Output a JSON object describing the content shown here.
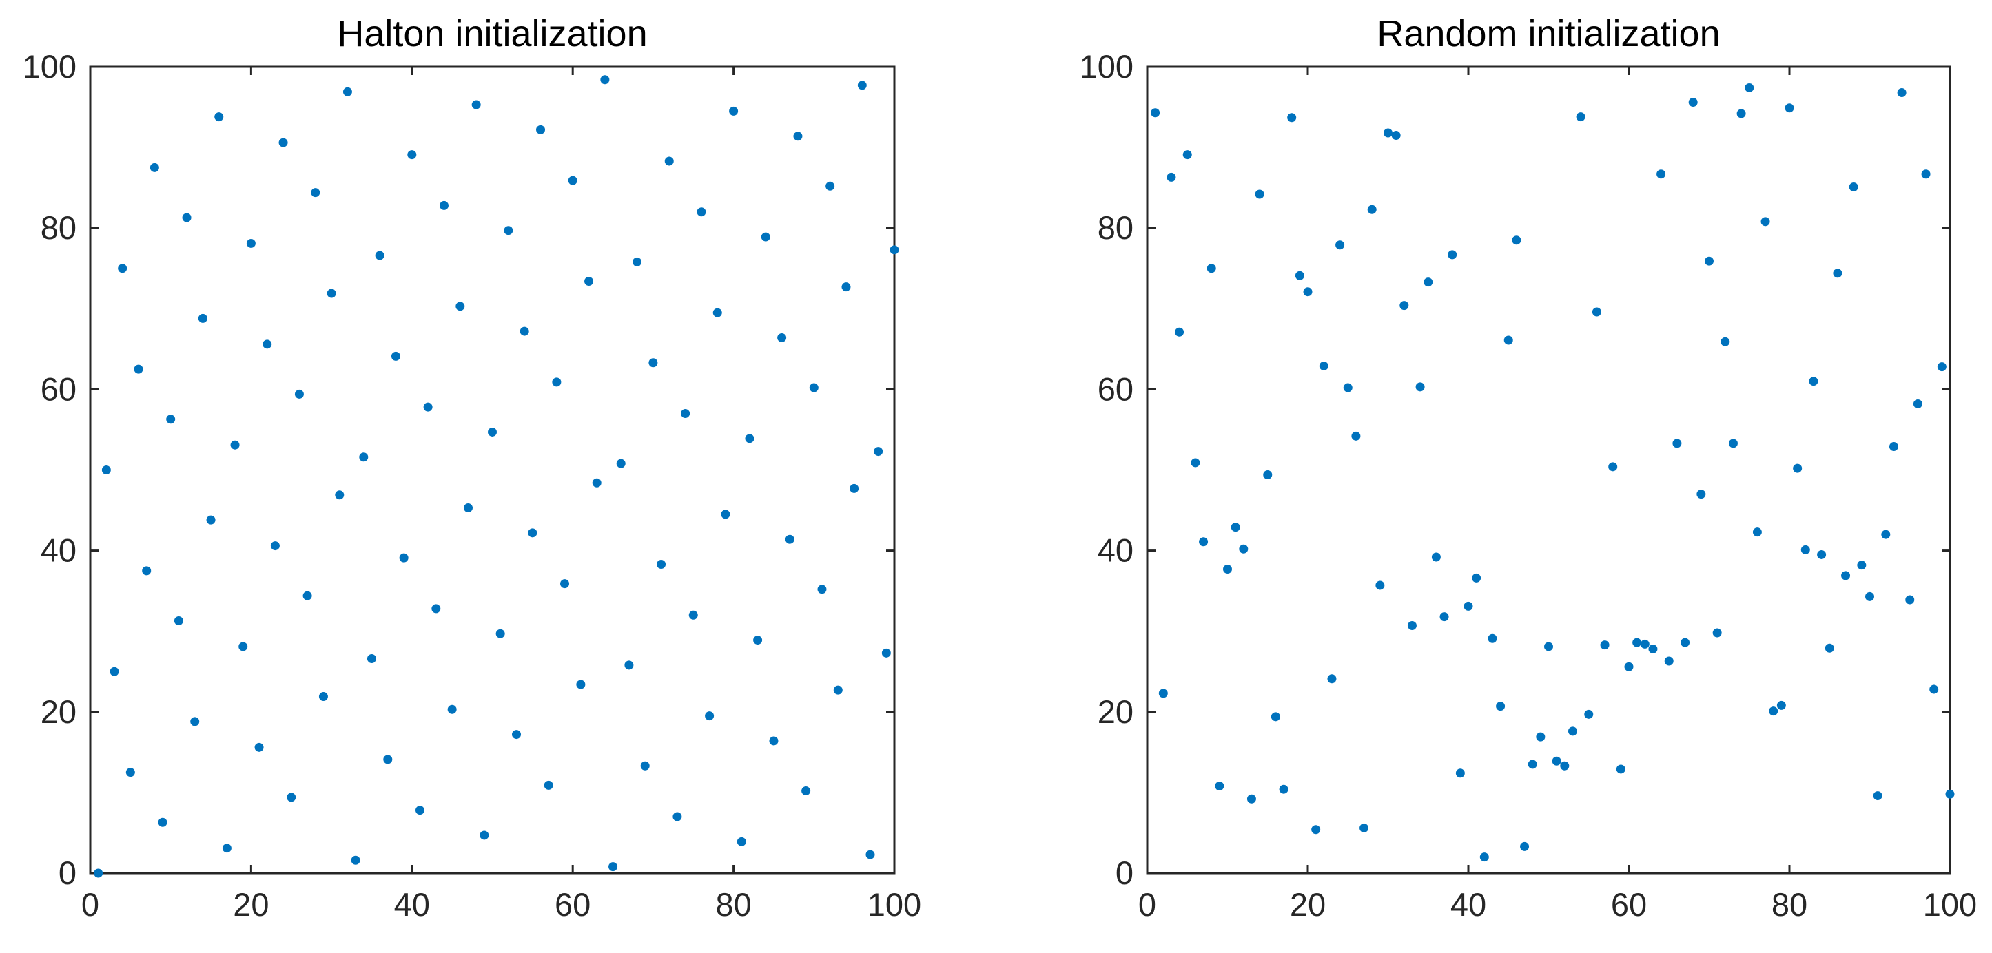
{
  "chart_data": [
    {
      "type": "scatter",
      "title": "Halton initialization",
      "xlabel": "",
      "ylabel": "",
      "xlim": [
        0,
        100
      ],
      "ylim": [
        0,
        100
      ],
      "xticks": [
        "0",
        "20",
        "40",
        "60",
        "80",
        "100"
      ],
      "yticks": [
        "0",
        "20",
        "40",
        "60",
        "80",
        "100"
      ],
      "grid": false,
      "marker_color": "#0072BD",
      "series": [
        {
          "points": [
            [
              1,
              0
            ],
            [
              2,
              50
            ],
            [
              3,
              25
            ],
            [
              4,
              75
            ],
            [
              5,
              12.5
            ],
            [
              6,
              62.5
            ],
            [
              7,
              37.5
            ],
            [
              8,
              87.5
            ],
            [
              9,
              6.3
            ],
            [
              10,
              56.3
            ],
            [
              11,
              31.3
            ],
            [
              12,
              81.3
            ],
            [
              13,
              18.8
            ],
            [
              14,
              68.8
            ],
            [
              15,
              43.8
            ],
            [
              16,
              93.8
            ],
            [
              17,
              3.1
            ],
            [
              18,
              53.1
            ],
            [
              19,
              28.1
            ],
            [
              20,
              78.1
            ],
            [
              21,
              15.6
            ],
            [
              22,
              65.6
            ],
            [
              23,
              40.6
            ],
            [
              24,
              90.6
            ],
            [
              25,
              9.4
            ],
            [
              26,
              59.4
            ],
            [
              27,
              34.4
            ],
            [
              28,
              84.4
            ],
            [
              29,
              21.9
            ],
            [
              30,
              71.9
            ],
            [
              31,
              46.9
            ],
            [
              32,
              96.9
            ],
            [
              33,
              1.6
            ],
            [
              34,
              51.6
            ],
            [
              35,
              26.6
            ],
            [
              36,
              76.6
            ],
            [
              37,
              14.1
            ],
            [
              38,
              64.1
            ],
            [
              39,
              39.1
            ],
            [
              40,
              89.1
            ],
            [
              41,
              7.8
            ],
            [
              42,
              57.8
            ],
            [
              43,
              32.8
            ],
            [
              44,
              82.8
            ],
            [
              45,
              20.3
            ],
            [
              46,
              70.3
            ],
            [
              47,
              45.3
            ],
            [
              48,
              95.3
            ],
            [
              49,
              4.7
            ],
            [
              50,
              54.7
            ],
            [
              51,
              29.7
            ],
            [
              52,
              79.7
            ],
            [
              53,
              17.2
            ],
            [
              54,
              67.2
            ],
            [
              55,
              42.2
            ],
            [
              56,
              92.2
            ],
            [
              57,
              10.9
            ],
            [
              58,
              60.9
            ],
            [
              59,
              35.9
            ],
            [
              60,
              85.9
            ],
            [
              61,
              23.4
            ],
            [
              62,
              73.4
            ],
            [
              63,
              48.4
            ],
            [
              64,
              98.4
            ],
            [
              65,
              0.8
            ],
            [
              66,
              50.8
            ],
            [
              67,
              25.8
            ],
            [
              68,
              75.8
            ],
            [
              69,
              13.3
            ],
            [
              70,
              63.3
            ],
            [
              71,
              38.3
            ],
            [
              72,
              88.3
            ],
            [
              73,
              7.0
            ],
            [
              74,
              57.0
            ],
            [
              75,
              32.0
            ],
            [
              76,
              82.0
            ],
            [
              77,
              19.5
            ],
            [
              78,
              69.5
            ],
            [
              79,
              44.5
            ],
            [
              80,
              94.5
            ],
            [
              81,
              3.9
            ],
            [
              82,
              53.9
            ],
            [
              83,
              28.9
            ],
            [
              84,
              78.9
            ],
            [
              85,
              16.4
            ],
            [
              86,
              66.4
            ],
            [
              87,
              41.4
            ],
            [
              88,
              91.4
            ],
            [
              89,
              10.2
            ],
            [
              90,
              60.2
            ],
            [
              91,
              35.2
            ],
            [
              92,
              85.2
            ],
            [
              93,
              22.7
            ],
            [
              94,
              72.7
            ],
            [
              95,
              47.7
            ],
            [
              96,
              97.7
            ],
            [
              97,
              2.3
            ],
            [
              98,
              52.3
            ],
            [
              99,
              27.3
            ],
            [
              100,
              77.3
            ]
          ]
        }
      ]
    },
    {
      "type": "scatter",
      "title": "Random initialization",
      "xlabel": "",
      "ylabel": "",
      "xlim": [
        0,
        100
      ],
      "ylim": [
        0,
        100
      ],
      "xticks": [
        "0",
        "20",
        "40",
        "60",
        "80",
        "100"
      ],
      "yticks": [
        "0",
        "20",
        "40",
        "60",
        "80",
        "100"
      ],
      "grid": false,
      "marker_color": "#0072BD",
      "series": [
        {
          "points": [
            [
              1,
              94.3
            ],
            [
              2,
              22.3
            ],
            [
              3,
              86.3
            ],
            [
              4,
              67.1
            ],
            [
              5,
              89.1
            ],
            [
              6,
              50.9
            ],
            [
              7,
              41.1
            ],
            [
              8,
              75.0
            ],
            [
              9,
              10.8
            ],
            [
              10,
              37.7
            ],
            [
              11,
              42.9
            ],
            [
              12,
              40.2
            ],
            [
              13,
              9.2
            ],
            [
              14,
              84.2
            ],
            [
              15,
              49.4
            ],
            [
              16,
              19.4
            ],
            [
              17,
              10.4
            ],
            [
              18,
              93.7
            ],
            [
              19,
              74.1
            ],
            [
              20,
              72.1
            ],
            [
              21,
              5.4
            ],
            [
              22,
              62.9
            ],
            [
              23,
              24.1
            ],
            [
              24,
              77.9
            ],
            [
              25,
              60.2
            ],
            [
              26,
              54.2
            ],
            [
              27,
              5.6
            ],
            [
              28,
              82.3
            ],
            [
              29,
              35.7
            ],
            [
              30,
              91.8
            ],
            [
              31,
              91.5
            ],
            [
              32,
              70.4
            ],
            [
              33,
              30.7
            ],
            [
              34,
              60.3
            ],
            [
              35,
              73.3
            ],
            [
              36,
              39.2
            ],
            [
              37,
              31.8
            ],
            [
              38,
              76.7
            ],
            [
              39,
              12.4
            ],
            [
              40,
              33.1
            ],
            [
              41,
              36.6
            ],
            [
              42,
              2.0
            ],
            [
              43,
              29.1
            ],
            [
              44,
              20.7
            ],
            [
              45,
              66.1
            ],
            [
              46,
              78.5
            ],
            [
              47,
              3.3
            ],
            [
              48,
              13.5
            ],
            [
              49,
              16.9
            ],
            [
              50,
              28.1
            ],
            [
              51,
              13.9
            ],
            [
              52,
              13.3
            ],
            [
              53,
              17.6
            ],
            [
              54,
              93.8
            ],
            [
              55,
              19.7
            ],
            [
              56,
              69.6
            ],
            [
              57,
              28.3
            ],
            [
              58,
              50.4
            ],
            [
              59,
              12.9
            ],
            [
              60,
              25.6
            ],
            [
              61,
              28.6
            ],
            [
              62,
              28.4
            ],
            [
              63,
              27.8
            ],
            [
              64,
              86.7
            ],
            [
              65,
              26.3
            ],
            [
              66,
              53.3
            ],
            [
              67,
              28.6
            ],
            [
              68,
              95.6
            ],
            [
              69,
              47.0
            ],
            [
              70,
              75.9
            ],
            [
              71,
              29.8
            ],
            [
              72,
              65.9
            ],
            [
              73,
              53.3
            ],
            [
              74,
              94.2
            ],
            [
              75,
              97.4
            ],
            [
              76,
              42.3
            ],
            [
              77,
              80.8
            ],
            [
              78,
              20.1
            ],
            [
              79,
              20.8
            ],
            [
              80,
              94.9
            ],
            [
              81,
              50.2
            ],
            [
              82,
              40.1
            ],
            [
              83,
              61.0
            ],
            [
              84,
              39.5
            ],
            [
              85,
              27.9
            ],
            [
              86,
              74.4
            ],
            [
              87,
              36.9
            ],
            [
              88,
              85.1
            ],
            [
              89,
              38.2
            ],
            [
              90,
              34.3
            ],
            [
              91,
              9.6
            ],
            [
              92,
              42.0
            ],
            [
              93,
              52.9
            ],
            [
              94,
              96.8
            ],
            [
              95,
              33.9
            ],
            [
              96,
              58.2
            ],
            [
              97,
              86.7
            ],
            [
              98,
              22.8
            ],
            [
              99,
              62.8
            ],
            [
              100,
              9.8
            ]
          ]
        }
      ]
    }
  ]
}
